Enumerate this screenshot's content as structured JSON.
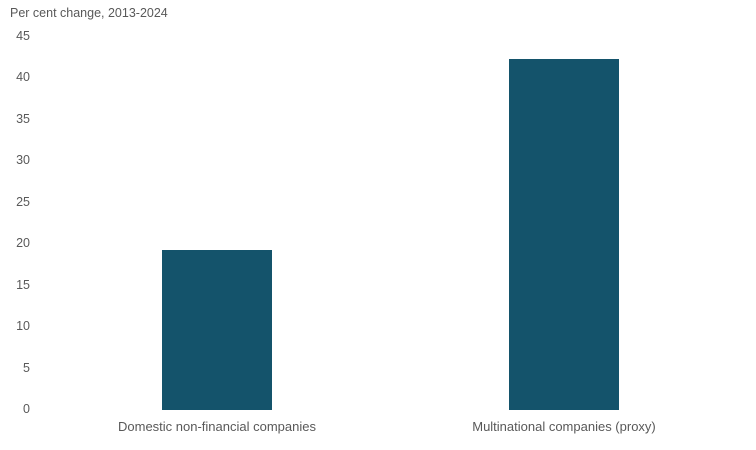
{
  "chart_data": {
    "type": "bar",
    "title": "Per cent change, 2013-2024",
    "categories": [
      "Domestic non-financial companies",
      "Multinational companies (proxy)"
    ],
    "values": [
      19.3,
      42.4
    ],
    "series": [
      {
        "name": "Per cent change 2013-2024",
        "values": [
          19.3,
          42.4
        ]
      }
    ],
    "xlabel": "",
    "ylabel": "",
    "ylim": [
      0,
      45
    ],
    "yticks": [
      0,
      5,
      10,
      15,
      20,
      25,
      30,
      35,
      40,
      45
    ],
    "grid": false,
    "legend_position": "none",
    "colors": {
      "bar": "#14536B",
      "text": "#595959",
      "background": "#FFFFFF"
    }
  }
}
